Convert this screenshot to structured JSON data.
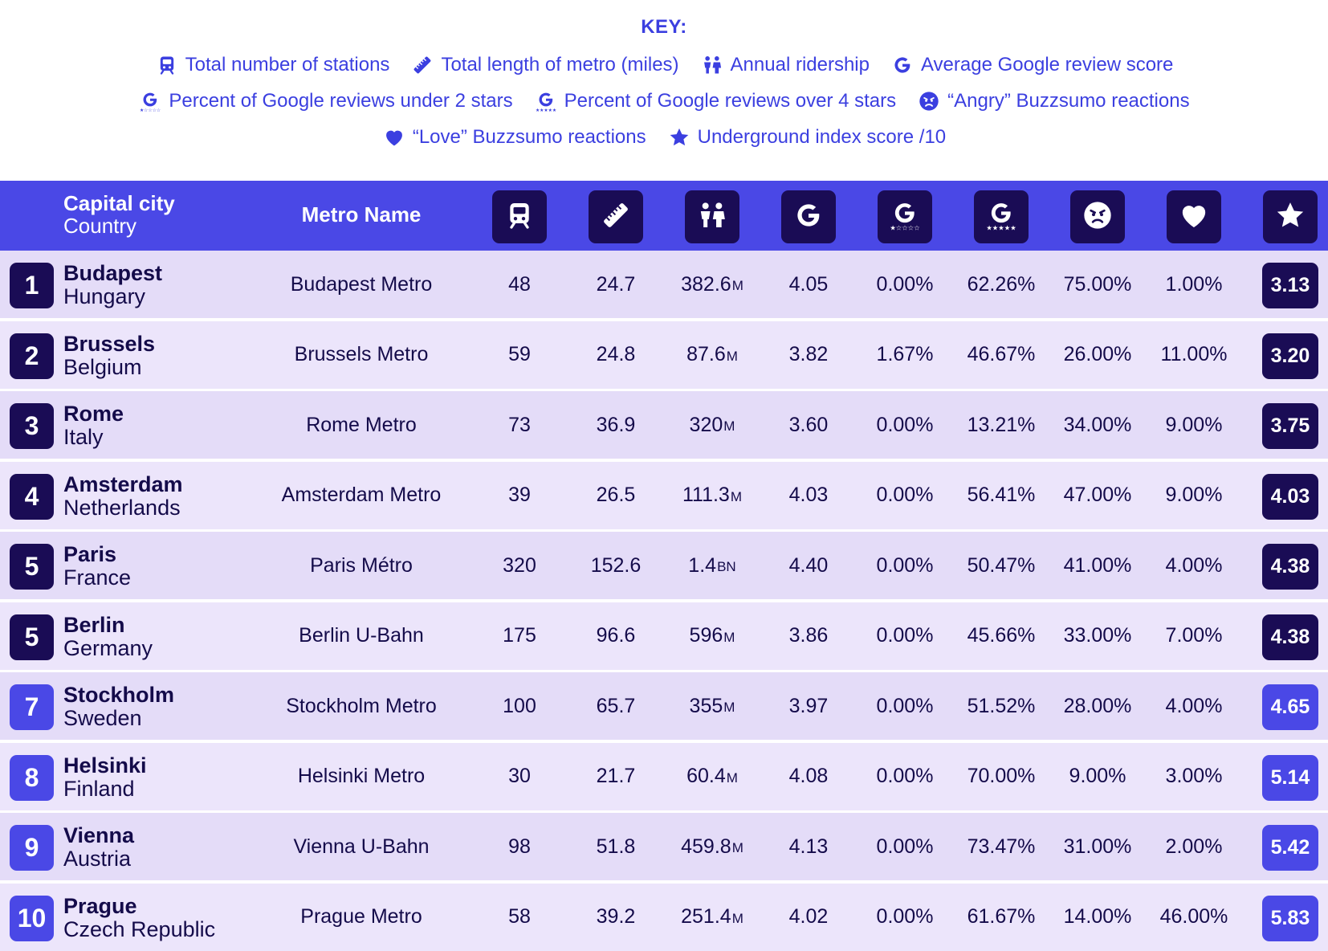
{
  "key": {
    "title": "KEY:",
    "items": [
      {
        "icon": "train-icon",
        "label": "Total number of stations"
      },
      {
        "icon": "ruler-icon",
        "label": "Total length of metro (miles)"
      },
      {
        "icon": "people-icon",
        "label": "Annual ridership"
      },
      {
        "icon": "google-icon",
        "label": "Average Google review score"
      },
      {
        "icon": "google-low-stars-icon",
        "label": "Percent of Google reviews under 2 stars"
      },
      {
        "icon": "google-high-stars-icon",
        "label": "Percent of Google reviews over 4 stars"
      },
      {
        "icon": "angry-face-icon",
        "label": "“Angry” Buzzsumo reactions"
      },
      {
        "icon": "heart-icon",
        "label": "“Love” Buzzsumo reactions"
      },
      {
        "icon": "star-icon",
        "label": "Underground index score /10"
      }
    ]
  },
  "header": {
    "city_line1": "Capital city",
    "city_line2": "Country",
    "metro": "Metro Name"
  },
  "colors": {
    "accent": "#4a48e6",
    "dark": "#1a0c55",
    "key_text": "#3b3fe0",
    "row_odd": "#e4dcf8",
    "row_even": "#ece5fb"
  },
  "rows": [
    {
      "rank": "1",
      "city": "Budapest",
      "country": "Hungary",
      "metro": "Budapest Metro",
      "stations": "48",
      "length": "24.7",
      "ridership": "382.6",
      "ridership_unit": "M",
      "google": "4.05",
      "under2": "0.00%",
      "over4": "62.26%",
      "angry": "75.00%",
      "love": "1.00%",
      "score": "3.13",
      "tone": "dark"
    },
    {
      "rank": "2",
      "city": "Brussels",
      "country": "Belgium",
      "metro": "Brussels Metro",
      "stations": "59",
      "length": "24.8",
      "ridership": "87.6",
      "ridership_unit": "M",
      "google": "3.82",
      "under2": "1.67%",
      "over4": "46.67%",
      "angry": "26.00%",
      "love": "11.00%",
      "score": "3.20",
      "tone": "dark"
    },
    {
      "rank": "3",
      "city": "Rome",
      "country": "Italy",
      "metro": "Rome Metro",
      "stations": "73",
      "length": "36.9",
      "ridership": "320",
      "ridership_unit": "M",
      "google": "3.60",
      "under2": "0.00%",
      "over4": "13.21%",
      "angry": "34.00%",
      "love": "9.00%",
      "score": "3.75",
      "tone": "dark"
    },
    {
      "rank": "4",
      "city": "Amsterdam",
      "country": "Netherlands",
      "metro": "Amsterdam Metro",
      "stations": "39",
      "length": "26.5",
      "ridership": "111.3",
      "ridership_unit": "M",
      "google": "4.03",
      "under2": "0.00%",
      "over4": "56.41%",
      "angry": "47.00%",
      "love": "9.00%",
      "score": "4.03",
      "tone": "dark"
    },
    {
      "rank": "5",
      "city": "Paris",
      "country": "France",
      "metro": "Paris Métro",
      "stations": "320",
      "length": "152.6",
      "ridership": "1.4",
      "ridership_unit": "BN",
      "google": "4.40",
      "under2": "0.00%",
      "over4": "50.47%",
      "angry": "41.00%",
      "love": "4.00%",
      "score": "4.38",
      "tone": "dark"
    },
    {
      "rank": "5",
      "city": "Berlin",
      "country": "Germany",
      "metro": "Berlin U-Bahn",
      "stations": "175",
      "length": "96.6",
      "ridership": "596",
      "ridership_unit": "M",
      "google": "3.86",
      "under2": "0.00%",
      "over4": "45.66%",
      "angry": "33.00%",
      "love": "7.00%",
      "score": "4.38",
      "tone": "dark"
    },
    {
      "rank": "7",
      "city": "Stockholm",
      "country": "Sweden",
      "metro": "Stockholm Metro",
      "stations": "100",
      "length": "65.7",
      "ridership": "355",
      "ridership_unit": "M",
      "google": "3.97",
      "under2": "0.00%",
      "over4": "51.52%",
      "angry": "28.00%",
      "love": "4.00%",
      "score": "4.65",
      "tone": "blue"
    },
    {
      "rank": "8",
      "city": "Helsinki",
      "country": "Finland",
      "metro": "Helsinki Metro",
      "stations": "30",
      "length": "21.7",
      "ridership": "60.4",
      "ridership_unit": "M",
      "google": "4.08",
      "under2": "0.00%",
      "over4": "70.00%",
      "angry": "9.00%",
      "love": "3.00%",
      "score": "5.14",
      "tone": "blue"
    },
    {
      "rank": "9",
      "city": "Vienna",
      "country": "Austria",
      "metro": "Vienna U-Bahn",
      "stations": "98",
      "length": "51.8",
      "ridership": "459.8",
      "ridership_unit": "M",
      "google": "4.13",
      "under2": "0.00%",
      "over4": "73.47%",
      "angry": "31.00%",
      "love": "2.00%",
      "score": "5.42",
      "tone": "blue"
    },
    {
      "rank": "10",
      "city": "Prague",
      "country": "Czech Republic",
      "metro": "Prague Metro",
      "stations": "58",
      "length": "39.2",
      "ridership": "251.4",
      "ridership_unit": "M",
      "google": "4.02",
      "under2": "0.00%",
      "over4": "61.67%",
      "angry": "14.00%",
      "love": "46.00%",
      "score": "5.83",
      "tone": "blue"
    }
  ]
}
